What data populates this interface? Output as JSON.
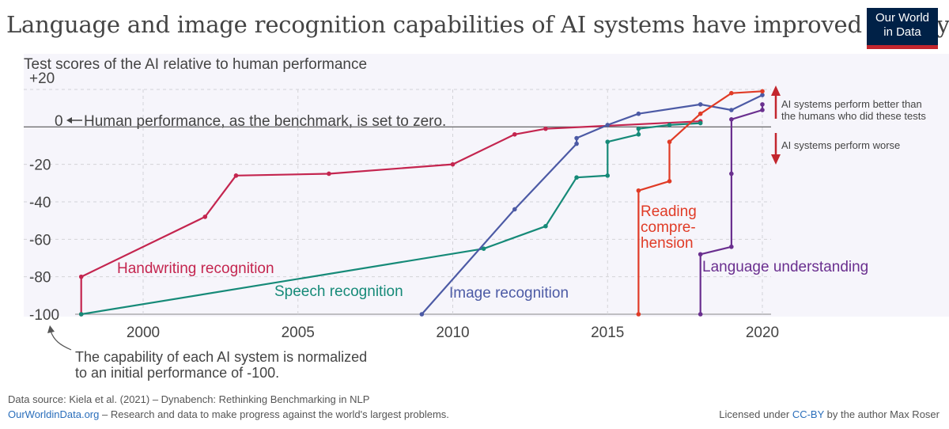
{
  "header": {
    "title": "Language and image recognition capabilities of AI systems have improved rapidly",
    "logo_line1": "Our World",
    "logo_line2": "in Data",
    "logo_bg": "#002147",
    "logo_accent": "#c3262e"
  },
  "chart_data": {
    "type": "line",
    "title": "Language and image recognition capabilities of AI systems have improved rapidly",
    "ylabel": "Test scores of the AI relative to human performance",
    "xlim": [
      1997.5,
      2020.5
    ],
    "ylim": [
      -100,
      20
    ],
    "x_ticks": [
      "2000",
      "2005",
      "2010",
      "2015",
      "2020"
    ],
    "y_ticks": [
      "+20",
      "0",
      "-20",
      "-40",
      "-60",
      "-80",
      "-100"
    ],
    "grid": true,
    "zero_line_label": "Human performance, as the benchmark, is set to zero.",
    "series": [
      {
        "name": "Handwriting recognition",
        "color": "#c4254f",
        "x": [
          1998,
          1998,
          2002,
          2003,
          2006,
          2010,
          2012,
          2013,
          2018
        ],
        "y": [
          -100,
          -80,
          -48,
          -26,
          -25,
          -20,
          -4,
          -1,
          3
        ]
      },
      {
        "name": "Speech recognition",
        "color": "#168a78",
        "x": [
          1998,
          2011,
          2013,
          2014,
          2015,
          2015,
          2016,
          2016,
          2017,
          2018
        ],
        "y": [
          -100,
          -65,
          -53,
          -27,
          -26,
          -8,
          -4,
          -1,
          1,
          2
        ]
      },
      {
        "name": "Image recognition",
        "color": "#4c5aa5",
        "x": [
          2009,
          2012,
          2014,
          2014,
          2015,
          2016,
          2018,
          2019,
          2020
        ],
        "y": [
          -100,
          -44,
          -9,
          -6,
          1,
          7,
          12,
          9,
          17
        ]
      },
      {
        "name": "Reading compre-hension",
        "color": "#e03b26",
        "x": [
          2016,
          2016,
          2017,
          2017,
          2018,
          2019,
          2020
        ],
        "y": [
          -100,
          -34,
          -29,
          -8,
          7,
          18,
          19
        ]
      },
      {
        "name": "Language understanding",
        "color": "#6a2f8f",
        "x": [
          2018,
          2018,
          2019,
          2019,
          2019,
          2020,
          2020
        ],
        "y": [
          -100,
          -68,
          -64,
          -25,
          4,
          9,
          12
        ]
      }
    ],
    "labels": {
      "handwriting": "Handwriting recognition",
      "speech": "Speech recognition",
      "image": "Image recognition",
      "reading_1": "Reading",
      "reading_2": "compre-",
      "reading_3": "hension",
      "language": "Language understanding"
    },
    "annotations": {
      "better_1": "AI systems perform better than",
      "better_2": "the humans who did these tests",
      "worse": "AI systems perform worse"
    },
    "arrow_color": "#c3262e"
  },
  "note": {
    "line1": "The capability of each AI system is normalized",
    "line2": "to an initial performance of -100."
  },
  "footer": {
    "source": "Data source: Kiela et al. (2021) – Dynabench: Rethinking Benchmarking in NLP",
    "site_link": "OurWorldinData.org",
    "site_text": " – Research and data to make progress against the world's largest problems.",
    "license_prefix": "Licensed under ",
    "license_link": "CC-BY",
    "license_suffix": " by the author Max Roser"
  }
}
